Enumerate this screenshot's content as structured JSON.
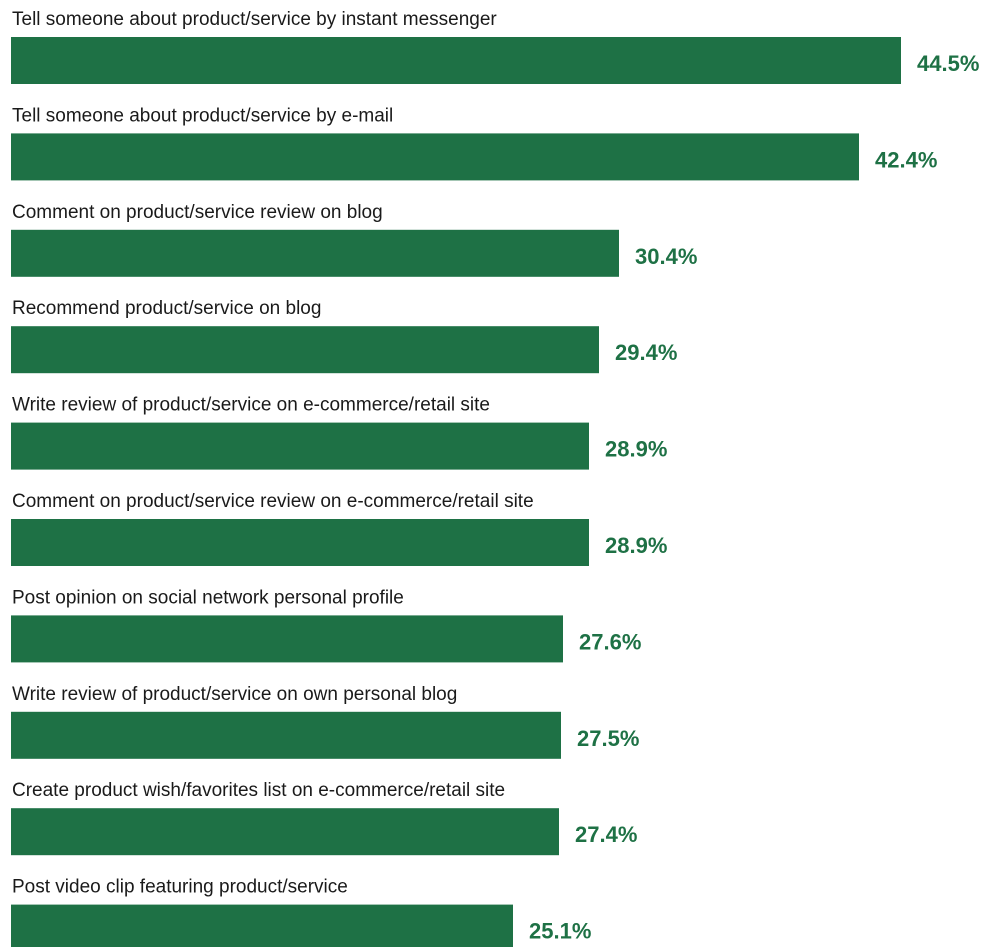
{
  "colors": {
    "bar": "#1e7145",
    "value_text": "#1e7145",
    "label_text": "#1a1a1a"
  },
  "chart_data": {
    "type": "bar",
    "orientation": "horizontal",
    "title": "",
    "xlabel": "",
    "ylabel": "",
    "grid": false,
    "legend": "none",
    "value_suffix": "%",
    "xlim": [
      0,
      44.5
    ],
    "categories": [
      "Tell someone about product/service by instant messenger",
      "Tell someone about product/service by e-mail",
      "Comment on product/service review on blog",
      "Recommend product/service on blog",
      "Write review of product/service on e-commerce/retail site",
      "Comment on product/service review on e-commerce/retail site",
      "Post opinion on social network personal profile",
      "Write review of product/service on own personal blog",
      "Create product wish/favorites list on e-commerce/retail site",
      "Post video clip featuring product/service"
    ],
    "values": [
      44.5,
      42.4,
      30.4,
      29.4,
      28.9,
      28.9,
      27.6,
      27.5,
      27.4,
      25.1
    ],
    "value_labels": [
      "44.5%",
      "42.4%",
      "30.4%",
      "29.4%",
      "28.9%",
      "28.9%",
      "27.6%",
      "27.5%",
      "27.4%",
      "25.1%"
    ]
  }
}
